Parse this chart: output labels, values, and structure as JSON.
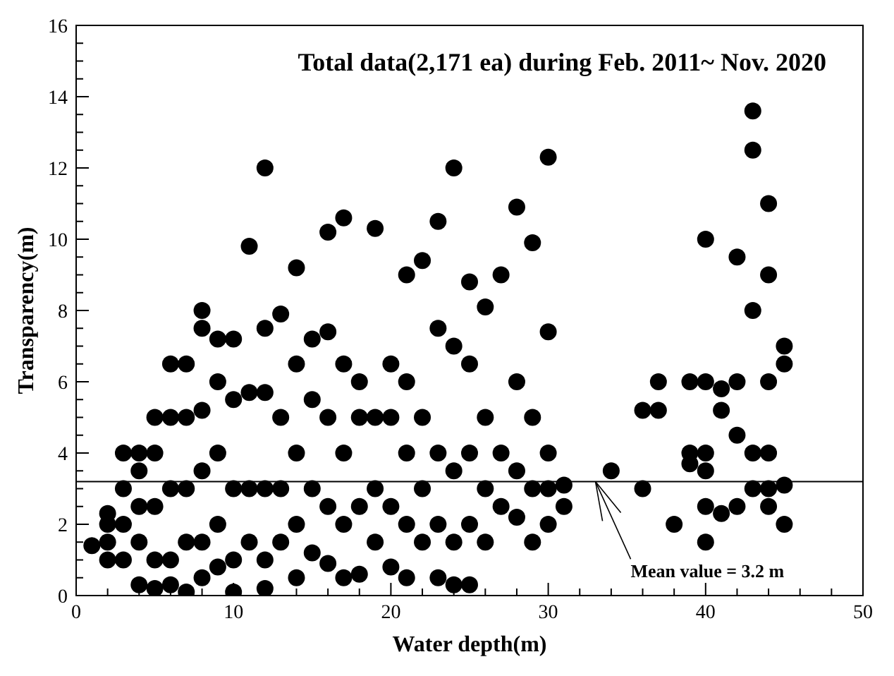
{
  "chart_data": {
    "type": "scatter",
    "title": "Total data(2,171 ea) during Feb. 2011~ Nov. 2020",
    "xlabel": "Water depth(m)",
    "ylabel": "Transparency(m)",
    "xlim": [
      0,
      50
    ],
    "ylim": [
      0,
      16
    ],
    "xticks": [
      0,
      {
        "value": 2,
        "label": null
      },
      {
        "value": 4,
        "label": null
      },
      {
        "value": 6,
        "label": null
      },
      {
        "value": 8,
        "label": null
      },
      10,
      {
        "value": 12,
        "label": null
      },
      {
        "value": 14,
        "label": null
      },
      {
        "value": 16,
        "label": null
      },
      {
        "value": 18,
        "label": null
      },
      20,
      {
        "value": 22,
        "label": null
      },
      {
        "value": 24,
        "label": null
      },
      {
        "value": 26,
        "label": null
      },
      {
        "value": 28,
        "label": null
      },
      30,
      {
        "value": 32,
        "label": null
      },
      {
        "value": 34,
        "label": null
      },
      {
        "value": 36,
        "label": null
      },
      {
        "value": 38,
        "label": null
      },
      40,
      {
        "value": 42,
        "label": null
      },
      {
        "value": 44,
        "label": null
      },
      {
        "value": 46,
        "label": null
      },
      {
        "value": 48,
        "label": null
      },
      50
    ],
    "yticks": [
      0,
      {
        "value": 0.5,
        "label": null
      },
      {
        "value": 1,
        "label": null
      },
      {
        "value": 1.5,
        "label": null
      },
      2,
      {
        "value": 2.5,
        "label": null
      },
      {
        "value": 3,
        "label": null
      },
      {
        "value": 3.5,
        "label": null
      },
      4,
      {
        "value": 4.5,
        "label": null
      },
      {
        "value": 5,
        "label": null
      },
      {
        "value": 5.5,
        "label": null
      },
      6,
      {
        "value": 6.5,
        "label": null
      },
      {
        "value": 7,
        "label": null
      },
      {
        "value": 7.5,
        "label": null
      },
      8,
      {
        "value": 8.5,
        "label": null
      },
      {
        "value": 9,
        "label": null
      },
      {
        "value": 9.5,
        "label": null
      },
      10,
      {
        "value": 10.5,
        "label": null
      },
      {
        "value": 11,
        "label": null
      },
      {
        "value": 11.5,
        "label": null
      },
      12,
      {
        "value": 12.5,
        "label": null
      },
      {
        "value": 13,
        "label": null
      },
      {
        "value": 13.5,
        "label": null
      },
      14,
      {
        "value": 14.5,
        "label": null
      },
      {
        "value": 15,
        "label": null
      },
      {
        "value": 15.5,
        "label": null
      },
      16
    ],
    "grid": false,
    "marker": "circle",
    "ref_lines": [
      {
        "axis": "y",
        "value": 3.2,
        "color": "#000000"
      }
    ],
    "annotations": [
      {
        "text": "Mean value = 3.2 m",
        "x": 33,
        "y": 3.2
      }
    ],
    "series": [
      {
        "color": "#000000",
        "x": [
          1,
          2,
          2,
          2,
          2,
          3,
          3,
          3,
          3,
          4,
          4,
          4,
          4,
          4,
          5,
          5,
          5,
          5,
          5,
          6,
          6,
          6,
          6,
          6,
          7,
          7,
          7,
          7,
          7,
          8,
          8,
          8,
          8,
          8,
          8,
          9,
          9,
          9,
          9,
          9,
          10,
          10,
          10,
          10,
          10,
          11,
          11,
          11,
          11,
          12,
          12,
          12,
          12,
          12,
          12,
          13,
          13,
          13,
          13,
          14,
          14,
          14,
          14,
          14,
          15,
          15,
          15,
          15,
          16,
          16,
          16,
          16,
          16,
          17,
          17,
          17,
          17,
          17,
          18,
          18,
          18,
          18,
          19,
          19,
          19,
          19,
          20,
          20,
          20,
          20,
          21,
          21,
          21,
          21,
          21,
          22,
          22,
          22,
          22,
          23,
          23,
          23,
          23,
          23,
          24,
          24,
          24,
          24,
          24,
          25,
          25,
          25,
          25,
          25,
          26,
          26,
          26,
          26,
          27,
          27,
          27,
          28,
          28,
          28,
          28,
          29,
          29,
          29,
          29,
          30,
          30,
          30,
          30,
          30,
          31,
          31,
          34,
          36,
          36,
          37,
          37,
          38,
          39,
          39,
          39,
          40,
          40,
          40,
          40,
          40,
          40,
          41,
          41,
          41,
          42,
          42,
          42,
          42,
          43,
          43,
          43,
          43,
          43,
          44,
          44,
          44,
          44,
          44,
          44,
          45,
          45,
          45,
          45
        ],
        "values": [
          1.4,
          1.0,
          1.5,
          2.0,
          2.3,
          1.0,
          2.0,
          3.0,
          4.0,
          0.3,
          1.5,
          2.5,
          3.5,
          4.0,
          0.2,
          1.0,
          2.5,
          4.0,
          5.0,
          0.3,
          1.0,
          3.0,
          5.0,
          6.5,
          0.1,
          1.5,
          3.0,
          5.0,
          6.5,
          0.5,
          1.5,
          3.5,
          5.2,
          7.5,
          8.0,
          0.8,
          2.0,
          4.0,
          6.0,
          7.2,
          0.1,
          1.0,
          3.0,
          5.5,
          7.2,
          1.5,
          3.0,
          5.7,
          9.8,
          0.2,
          1.0,
          3.0,
          5.7,
          7.5,
          12.0,
          1.5,
          3.0,
          5.0,
          7.9,
          0.5,
          2.0,
          4.0,
          6.5,
          9.2,
          1.2,
          3.0,
          5.5,
          7.2,
          0.9,
          2.5,
          5.0,
          7.4,
          10.2,
          0.5,
          2.0,
          4.0,
          6.5,
          10.6,
          0.6,
          2.5,
          5.0,
          6.0,
          1.5,
          3.0,
          5.0,
          10.3,
          0.8,
          2.5,
          5.0,
          6.5,
          0.5,
          2.0,
          4.0,
          6.0,
          9.0,
          1.5,
          3.0,
          5.0,
          9.4,
          0.5,
          2.0,
          4.0,
          7.5,
          10.5,
          0.3,
          1.5,
          3.5,
          7.0,
          12.0,
          0.3,
          2.0,
          4.0,
          6.5,
          8.8,
          1.5,
          3.0,
          5.0,
          8.1,
          2.5,
          4.0,
          9.0,
          2.2,
          3.5,
          6.0,
          10.9,
          1.5,
          3.0,
          5.0,
          9.9,
          2.0,
          3.0,
          4.0,
          7.4,
          12.3,
          2.5,
          3.1,
          3.5,
          3.0,
          5.2,
          5.2,
          6.0,
          2.0,
          3.7,
          4.0,
          6.0,
          1.5,
          2.5,
          3.5,
          4.0,
          6.0,
          10.0,
          2.3,
          5.2,
          5.8,
          2.5,
          4.5,
          6.0,
          9.5,
          3.0,
          4.0,
          8.0,
          12.5,
          13.6,
          2.5,
          3.0,
          4.0,
          6.0,
          9.0,
          11.0,
          2.0,
          3.1,
          6.5,
          7.0
        ]
      }
    ]
  }
}
